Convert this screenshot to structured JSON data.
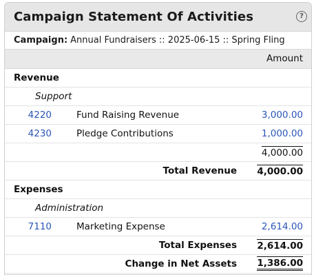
{
  "panel": {
    "title": "Campaign Statement Of Activities",
    "help_glyph": "?"
  },
  "campaign": {
    "label": "Campaign:",
    "value": "Annual Fundraisers :: 2025-06-15 :: Spring Fling"
  },
  "columns": {
    "amount": "Amount"
  },
  "revenue": {
    "section_label": "Revenue",
    "subsection_label": "Support",
    "rows": [
      {
        "account": "4220",
        "name": "Fund Raising Revenue",
        "amount": "3,000.00"
      },
      {
        "account": "4230",
        "name": "Pledge Contributions",
        "amount": "1,000.00"
      }
    ],
    "subtotal": "4,000.00",
    "total_label": "Total Revenue",
    "total": "4,000.00"
  },
  "expenses": {
    "section_label": "Expenses",
    "subsection_label": "Administration",
    "rows": [
      {
        "account": "7110",
        "name": "Marketing Expense",
        "amount": "2,614.00"
      }
    ],
    "total_label": "Total Expenses",
    "total": "2,614.00"
  },
  "net": {
    "label": "Change in Net Assets",
    "value": "1,386.00"
  },
  "colors": {
    "link": "#2a55b8",
    "header_bg": "#e6e6e6"
  }
}
